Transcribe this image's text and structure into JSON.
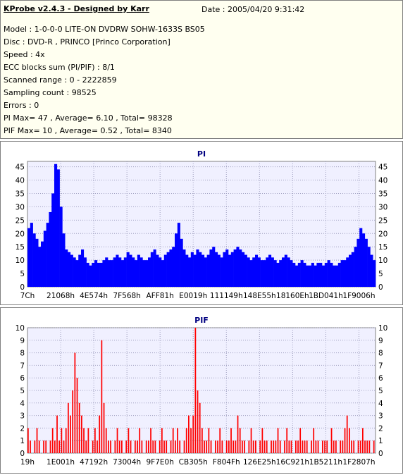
{
  "info": {
    "title": "KProbe v2.4.3 - Designed by Karr",
    "date": "Date : 2005/04/20 9:31:42",
    "lines": [
      "Model : 1-0-0-0 LITE-ON DVDRW SOHW-1633S BS05",
      "Disc : DVD-R , PRINCO [Princo Corporation]",
      "Speed : 4x",
      "ECC blocks sum (PI/PIF) : 8/1",
      "Scanned range : 0 - 2222859",
      "Sampling count : 98525",
      "Errors : 0",
      "PI Max= 47 , Average= 6.10 , Total= 98328",
      "PIF Max= 10 , Average= 0.52 , Total= 8340"
    ]
  },
  "colors": {
    "pi_fill": "#0000ff",
    "pif_fill": "#ff0000",
    "plot_bg": "#f0f0ff",
    "grid": "#a0a0c0",
    "title_text": "#000080"
  },
  "chart_data": [
    {
      "type": "area",
      "title": "PI",
      "ylim": [
        0,
        47
      ],
      "yticks": [
        0,
        5,
        10,
        15,
        20,
        25,
        30,
        35,
        40,
        45
      ],
      "xtick_labels": [
        "7Ch",
        "21068h",
        "4E574h",
        "7F568h",
        "AFF81h",
        "E0019h",
        "111149h",
        "148E55h",
        "18160Eh",
        "1BD041h",
        "1F9006h"
      ],
      "grid": true,
      "series": [
        {
          "values": [
            22,
            24,
            20,
            18,
            15,
            17,
            21,
            24,
            28,
            35,
            46,
            44,
            30,
            20,
            14,
            13,
            12,
            11,
            10,
            12,
            14,
            11,
            9,
            8,
            9,
            10,
            9,
            9,
            10,
            11,
            10,
            10,
            11,
            12,
            11,
            10,
            11,
            13,
            12,
            11,
            10,
            12,
            11,
            10,
            10,
            11,
            13,
            14,
            12,
            11,
            10,
            12,
            13,
            14,
            15,
            20,
            24,
            18,
            14,
            12,
            11,
            13,
            12,
            14,
            13,
            12,
            11,
            12,
            14,
            15,
            13,
            12,
            11,
            13,
            14,
            12,
            13,
            14,
            15,
            14,
            13,
            12,
            11,
            10,
            11,
            12,
            11,
            10,
            10,
            11,
            12,
            11,
            10,
            9,
            10,
            11,
            12,
            11,
            10,
            9,
            8,
            9,
            10,
            9,
            8,
            8,
            9,
            8,
            9,
            9,
            8,
            9,
            10,
            9,
            8,
            8,
            9,
            10,
            10,
            11,
            12,
            13,
            15,
            18,
            22,
            20,
            18,
            15,
            12,
            10
          ]
        }
      ]
    },
    {
      "type": "bar",
      "title": "PIF",
      "ylim": [
        0,
        10
      ],
      "yticks": [
        0,
        1,
        2,
        3,
        4,
        5,
        6,
        7,
        8,
        9,
        10
      ],
      "xtick_labels": [
        "19h",
        "1E001h",
        "47192h",
        "73004h",
        "9F7E0h",
        "CB305h",
        "F804Fh",
        "126E25h",
        "16C921h",
        "1B5211h",
        "1F2807h"
      ],
      "grid": true,
      "series": [
        {
          "values": [
            2,
            1,
            0,
            1,
            2,
            1,
            0,
            1,
            1,
            0,
            1,
            2,
            1,
            3,
            1,
            2,
            1,
            2,
            4,
            3,
            5,
            8,
            6,
            4,
            3,
            2,
            1,
            2,
            0,
            1,
            2,
            1,
            3,
            9,
            4,
            2,
            1,
            1,
            0,
            1,
            2,
            1,
            1,
            0,
            1,
            2,
            1,
            0,
            1,
            1,
            2,
            1,
            0,
            1,
            1,
            2,
            1,
            1,
            0,
            1,
            2,
            1,
            1,
            0,
            1,
            2,
            1,
            2,
            1,
            0,
            1,
            2,
            3,
            2,
            3,
            10,
            5,
            4,
            2,
            1,
            1,
            2,
            1,
            0,
            1,
            1,
            2,
            1,
            0,
            1,
            1,
            2,
            1,
            1,
            3,
            2,
            1,
            1,
            0,
            1,
            2,
            1,
            1,
            0,
            1,
            2,
            1,
            1,
            0,
            1,
            1,
            1,
            2,
            1,
            0,
            1,
            2,
            1,
            1,
            0,
            1,
            1,
            2,
            1,
            1,
            1,
            0,
            1,
            2,
            1,
            1,
            0,
            1,
            1,
            1,
            0,
            2,
            1,
            1,
            0,
            1,
            1,
            2,
            3,
            2,
            1,
            1,
            0,
            1,
            1,
            2,
            1,
            1,
            1,
            0,
            1
          ]
        }
      ]
    }
  ]
}
